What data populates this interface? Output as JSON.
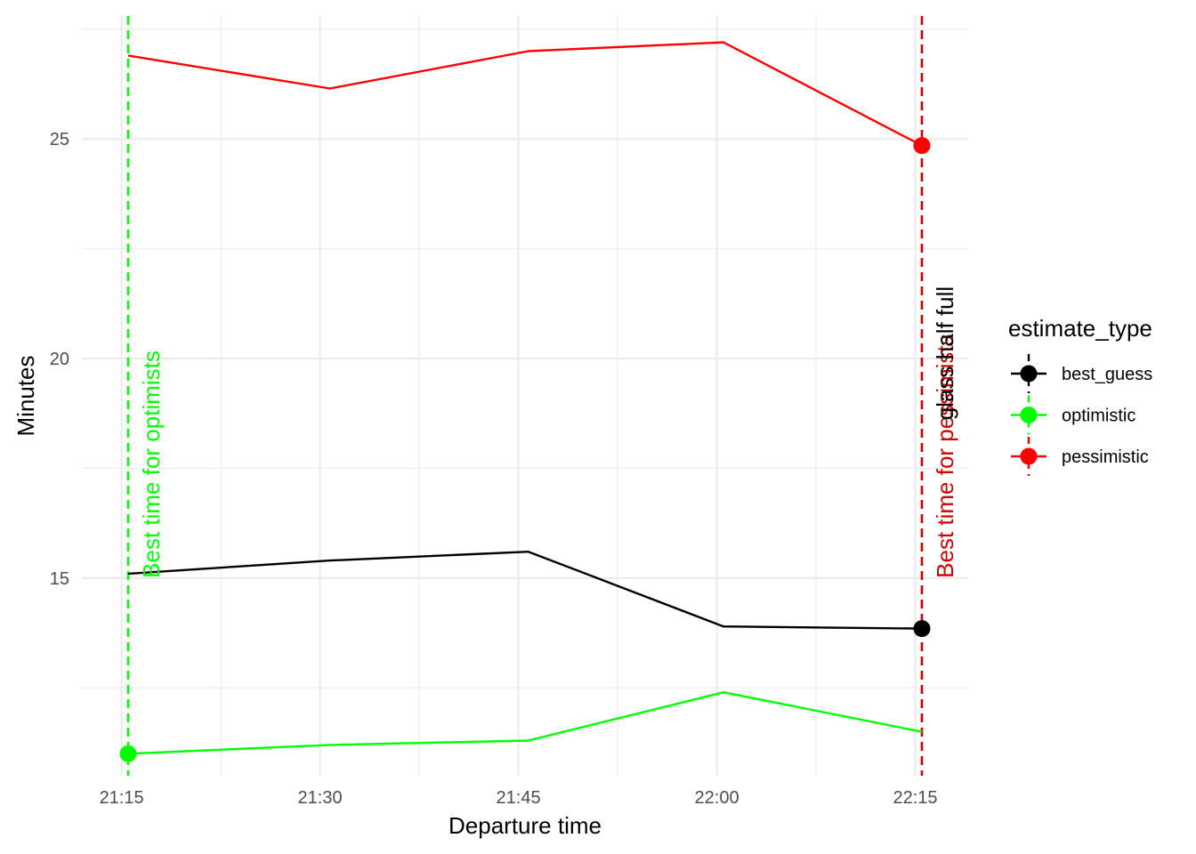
{
  "chart_data": {
    "type": "line",
    "xlabel": "Departure time",
    "ylabel": "Minutes",
    "x_ticks": [
      "21:15",
      "21:30",
      "21:45",
      "22:00",
      "22:15"
    ],
    "x_tick_values": [
      0,
      15,
      30,
      45,
      60
    ],
    "xlim": [
      -3,
      64
    ],
    "y_ticks": [
      "15",
      "20",
      "25"
    ],
    "y_tick_values": [
      15,
      20,
      25
    ],
    "ylim": [
      10.5,
      27.8
    ],
    "grid": true,
    "legend_position": "right",
    "legend_title": "estimate_type",
    "series": [
      {
        "name": "best_guess",
        "color": "#000000",
        "x": [
          "21:15:30",
          "21:30:45",
          "21:45:45",
          "22:00:30",
          "22:15:30"
        ],
        "x_minutes": [
          0.5,
          15.75,
          30.75,
          45.5,
          60.5
        ],
        "values": [
          15.1,
          15.4,
          15.6,
          13.9,
          13.85
        ]
      },
      {
        "name": "optimistic",
        "color": "#00ff00",
        "x": [
          "21:15:30",
          "21:30:45",
          "21:45:45",
          "22:00:30",
          "22:15:30"
        ],
        "x_minutes": [
          0.5,
          15.75,
          30.75,
          45.5,
          60.5
        ],
        "values": [
          11.0,
          11.2,
          11.3,
          12.4,
          11.5
        ]
      },
      {
        "name": "pessimistic",
        "color": "#ff0000",
        "x": [
          "21:15:30",
          "21:30:45",
          "21:45:45",
          "22:00:30",
          "22:15:30"
        ],
        "x_minutes": [
          0.5,
          15.75,
          30.75,
          45.5,
          60.5
        ],
        "values": [
          26.9,
          26.15,
          27.0,
          27.2,
          24.85
        ]
      }
    ],
    "highlight_points": [
      {
        "series": "optimistic",
        "x": "21:15:30",
        "x_minutes": 0.5,
        "value": 11.0,
        "color": "#00ff00"
      },
      {
        "series": "best_guess",
        "x": "22:15:30",
        "x_minutes": 60.5,
        "value": 13.85,
        "color": "#000000"
      },
      {
        "series": "pessimistic",
        "x": "22:15:30",
        "x_minutes": 60.5,
        "value": 24.85,
        "color": "#ff0000"
      }
    ],
    "vlines": [
      {
        "x": "21:15:30",
        "x_minutes": 0.5,
        "color": "#00ff00",
        "style": "dashed"
      },
      {
        "x": "22:15:30",
        "x_minutes": 60.5,
        "color": "#cc0000",
        "style": "dashed"
      }
    ],
    "annotations": [
      {
        "text": "Best time for optimists",
        "color": "#00ff00",
        "x_minutes": 0.5,
        "y_start": 15.0,
        "rotation": -90
      },
      {
        "text": "Best time for pessimists",
        "color": "#cc0000",
        "x_minutes": 60.5,
        "y_start": 15.0,
        "rotation": -90
      },
      {
        "text": "glass half full",
        "color": "#000000",
        "x_minutes": 60.5,
        "y_start": 18.6,
        "rotation": -90
      }
    ]
  }
}
